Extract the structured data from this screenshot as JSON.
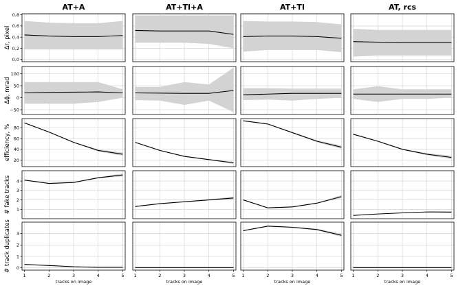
{
  "chart_data": {
    "type": "line",
    "columns": [
      "AT+A",
      "AT+TI+A",
      "AT+TI",
      "AT, rcs"
    ],
    "x": [
      1,
      2,
      3,
      4,
      5
    ],
    "xlabel": "tracks on image",
    "xlim": [
      0.9,
      5.1
    ],
    "band_color": "#d3d3d3",
    "line_color": "#000000",
    "grid": true,
    "rows": [
      {
        "ylabel": "Δr, pixel",
        "ylim": [
          -0.04,
          0.82
        ],
        "yticks": [
          0.0,
          0.2,
          0.4,
          0.6,
          0.8
        ],
        "tick_labels": [
          "0.0",
          "0.2",
          "0.4",
          "0.6",
          "0.8"
        ],
        "panels": [
          {
            "mean": [
              0.44,
              0.42,
              0.41,
              0.41,
              0.43
            ],
            "lower": [
              0.18,
              0.18,
              0.18,
              0.18,
              0.18
            ],
            "upper": [
              0.69,
              0.66,
              0.65,
              0.65,
              0.69
            ]
          },
          {
            "mean": [
              0.52,
              0.51,
              0.51,
              0.51,
              0.45
            ],
            "lower": [
              0.3,
              0.3,
              0.3,
              0.28,
              0.2
            ],
            "upper": [
              0.79,
              0.79,
              0.79,
              0.79,
              0.79
            ]
          },
          {
            "mean": [
              0.41,
              0.42,
              0.42,
              0.41,
              0.38
            ],
            "lower": [
              0.14,
              0.17,
              0.17,
              0.17,
              0.13
            ],
            "upper": [
              0.69,
              0.68,
              0.68,
              0.67,
              0.63
            ]
          },
          {
            "mean": [
              0.32,
              0.31,
              0.3,
              0.3,
              0.3
            ],
            "lower": [
              0.05,
              0.07,
              0.07,
              0.07,
              0.07
            ],
            "upper": [
              0.55,
              0.53,
              0.53,
              0.53,
              0.53
            ]
          }
        ]
      },
      {
        "ylabel": "Δϕ, mrad",
        "ylim": [
          -70,
          130
        ],
        "yticks": [
          -50,
          0,
          50,
          100
        ],
        "tick_labels": [
          "−50",
          "0",
          "50",
          "100"
        ],
        "panels": [
          {
            "mean": [
              20,
              22,
              23,
              24,
              20
            ],
            "lower": [
              -25,
              -25,
              -25,
              -18,
              0
            ],
            "upper": [
              65,
              65,
              65,
              65,
              35
            ]
          },
          {
            "mean": [
              20,
              19,
              18,
              18,
              30
            ],
            "lower": [
              -10,
              -12,
              -30,
              -12,
              -60
            ],
            "upper": [
              45,
              45,
              65,
              55,
              125
            ]
          },
          {
            "mean": [
              12,
              15,
              18,
              18,
              18
            ],
            "lower": [
              -10,
              -8,
              -12,
              -5,
              0
            ],
            "upper": [
              40,
              40,
              38,
              38,
              38
            ]
          },
          {
            "mean": [
              15,
              15,
              15,
              15,
              15
            ],
            "lower": [
              -5,
              -18,
              -5,
              -5,
              0
            ],
            "upper": [
              35,
              48,
              35,
              35,
              35
            ]
          }
        ]
      },
      {
        "ylabel": "efficiency, %",
        "ylim": [
          8,
          97
        ],
        "yticks": [
          20,
          40,
          60,
          80
        ],
        "tick_labels": [
          "20",
          "40",
          "60",
          "80"
        ],
        "panels": [
          {
            "mean": [
              89,
              72,
              53,
              38,
              31
            ],
            "lower": [
              88,
              71,
              52,
              36,
              28
            ],
            "upper": [
              90,
              73,
              54,
              40,
              34
            ]
          },
          {
            "mean": [
              53,
              38,
              27,
              21,
              15
            ],
            "lower": [
              52,
              37,
              26,
              20,
              13
            ],
            "upper": [
              54,
              39,
              28,
              22,
              17
            ]
          },
          {
            "mean": [
              93,
              87,
              71,
              55,
              44
            ],
            "lower": [
              92,
              86,
              70,
              53,
              41
            ],
            "upper": [
              94,
              88,
              72,
              57,
              47
            ]
          },
          {
            "mean": [
              68,
              55,
              40,
              31,
              25
            ],
            "lower": [
              67,
              54,
              39,
              29,
              22
            ],
            "upper": [
              69,
              56,
              41,
              33,
              28
            ]
          }
        ]
      },
      {
        "ylabel": "# fake tracks",
        "ylim": [
          0,
          5.1
        ],
        "yticks": [
          1,
          2,
          3,
          4
        ],
        "tick_labels": [
          "1",
          "2",
          "3",
          "4"
        ],
        "panels": [
          {
            "mean": [
              4.1,
              3.75,
              3.85,
              4.35,
              4.65
            ],
            "lower": [
              4.05,
              3.7,
              3.8,
              4.28,
              4.5
            ],
            "upper": [
              4.15,
              3.8,
              3.9,
              4.42,
              4.8
            ]
          },
          {
            "mean": [
              1.3,
              1.6,
              1.8,
              2.0,
              2.2
            ],
            "lower": [
              1.25,
              1.55,
              1.75,
              1.93,
              2.05
            ],
            "upper": [
              1.35,
              1.65,
              1.85,
              2.07,
              2.35
            ]
          },
          {
            "mean": [
              2.0,
              1.15,
              1.25,
              1.65,
              2.35
            ],
            "lower": [
              1.95,
              1.1,
              1.2,
              1.6,
              2.2
            ],
            "upper": [
              2.05,
              1.2,
              1.3,
              1.7,
              2.5
            ]
          },
          {
            "mean": [
              0.35,
              0.5,
              0.62,
              0.72,
              0.7
            ],
            "lower": [
              0.32,
              0.47,
              0.58,
              0.68,
              0.62
            ],
            "upper": [
              0.38,
              0.53,
              0.66,
              0.76,
              0.78
            ]
          }
        ]
      },
      {
        "ylabel": "# track duplicates",
        "ylim": [
          -0.2,
          4.0
        ],
        "yticks": [
          0,
          1,
          2,
          3
        ],
        "tick_labels": [
          "0",
          "1",
          "2",
          "3"
        ],
        "panels": [
          {
            "mean": [
              0.3,
              0.2,
              0.1,
              0.05,
              0.05
            ],
            "lower": [
              0.27,
              0.17,
              0.08,
              0.03,
              0.02
            ],
            "upper": [
              0.33,
              0.23,
              0.12,
              0.07,
              0.08
            ]
          },
          {
            "mean": [
              0.02,
              0.02,
              0.02,
              0.02,
              0.02
            ],
            "lower": [
              0.01,
              0.01,
              0.01,
              0.01,
              0.01
            ],
            "upper": [
              0.03,
              0.03,
              0.03,
              0.03,
              0.03
            ]
          },
          {
            "mean": [
              3.25,
              3.65,
              3.55,
              3.35,
              2.85
            ],
            "lower": [
              3.2,
              3.6,
              3.5,
              3.28,
              2.72
            ],
            "upper": [
              3.3,
              3.7,
              3.6,
              3.42,
              2.98
            ]
          },
          {
            "mean": [
              0.02,
              0.02,
              0.02,
              0.02,
              0.02
            ],
            "lower": [
              0.01,
              0.01,
              0.01,
              0.01,
              0.01
            ],
            "upper": [
              0.03,
              0.03,
              0.03,
              0.03,
              0.03
            ]
          }
        ]
      }
    ]
  }
}
